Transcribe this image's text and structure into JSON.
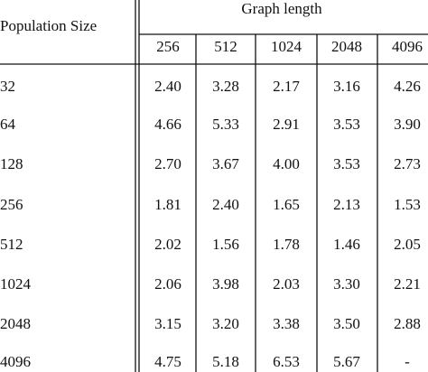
{
  "table": {
    "row_header": "Population Size",
    "column_group": "Graph length",
    "columns": [
      "256",
      "512",
      "1024",
      "2048",
      "4096"
    ],
    "rows": [
      {
        "label": "32",
        "cells": [
          "2.40",
          "3.28",
          "2.17",
          "3.16",
          "4.26"
        ]
      },
      {
        "label": "64",
        "cells": [
          "4.66",
          "5.33",
          "2.91",
          "3.53",
          "3.90"
        ]
      },
      {
        "label": "128",
        "cells": [
          "2.70",
          "3.67",
          "4.00",
          "3.53",
          "2.73"
        ]
      },
      {
        "label": "256",
        "cells": [
          "1.81",
          "2.40",
          "1.65",
          "2.13",
          "1.53"
        ]
      },
      {
        "label": "512",
        "cells": [
          "2.02",
          "1.56",
          "1.78",
          "1.46",
          "2.05"
        ]
      },
      {
        "label": "1024",
        "cells": [
          "2.06",
          "3.98",
          "2.03",
          "3.30",
          "2.21"
        ]
      },
      {
        "label": "2048",
        "cells": [
          "3.15",
          "3.20",
          "3.38",
          "3.50",
          "2.88"
        ]
      },
      {
        "label": "4096",
        "cells": [
          "4.75",
          "5.18",
          "6.53",
          "5.67",
          "-"
        ]
      }
    ]
  }
}
